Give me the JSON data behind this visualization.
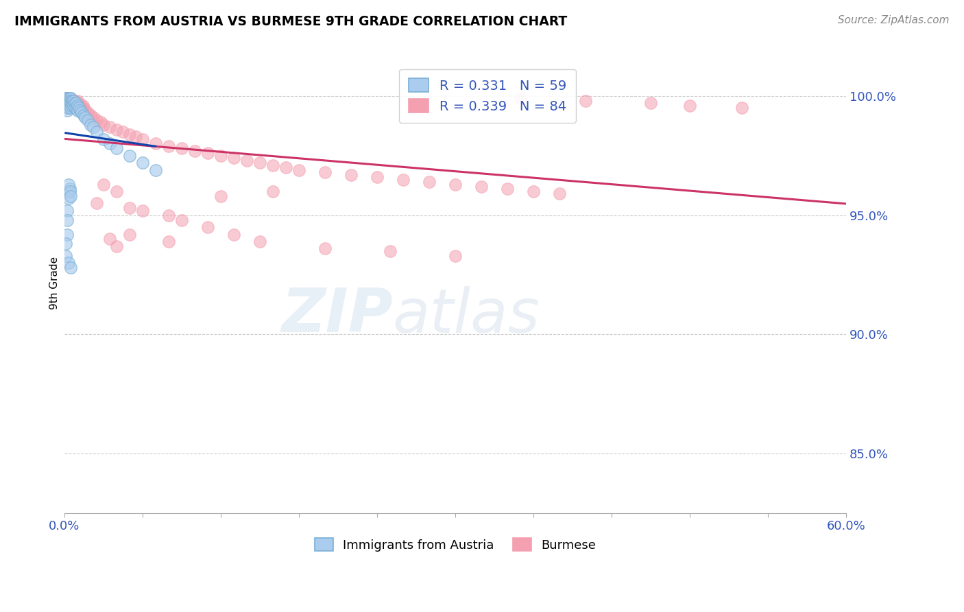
{
  "title": "IMMIGRANTS FROM AUSTRIA VS BURMESE 9TH GRADE CORRELATION CHART",
  "source": "Source: ZipAtlas.com",
  "ylabel": "9th Grade",
  "legend_r1": "R = 0.331",
  "legend_n1": "N = 59",
  "legend_r2": "R = 0.339",
  "legend_n2": "N = 84",
  "blue_color": "#7BAFD4",
  "blue_fill": "#AACCEE",
  "pink_color": "#F4A0B0",
  "pink_fill": "#F4A0B0",
  "blue_line_color": "#1144AA",
  "pink_line_color": "#CC3366",
  "xlim": [
    0.0,
    0.6
  ],
  "ylim": [
    0.825,
    1.018
  ],
  "ytick_values": [
    1.0,
    0.95,
    0.9,
    0.85
  ],
  "ytick_labels": [
    "100.0%",
    "95.0%",
    "90.0%",
    "85.0%"
  ],
  "xtick_left_label": "0.0%",
  "xtick_right_label": "60.0%",
  "bottom_legend_labels": [
    "Immigrants from Austria",
    "Burmese"
  ],
  "blue_x": [
    0.001,
    0.001,
    0.001,
    0.002,
    0.002,
    0.002,
    0.002,
    0.002,
    0.002,
    0.003,
    0.003,
    0.003,
    0.003,
    0.004,
    0.004,
    0.004,
    0.004,
    0.005,
    0.005,
    0.005,
    0.005,
    0.006,
    0.006,
    0.006,
    0.007,
    0.007,
    0.008,
    0.008,
    0.009,
    0.009,
    0.01,
    0.01,
    0.011,
    0.012,
    0.013,
    0.015,
    0.016,
    0.018,
    0.02,
    0.022,
    0.025,
    0.03,
    0.035,
    0.04,
    0.05,
    0.06,
    0.07,
    0.004,
    0.003,
    0.002,
    0.002,
    0.003,
    0.004,
    0.005,
    0.002,
    0.001,
    0.001,
    0.003,
    0.005
  ],
  "blue_y": [
    0.999,
    0.998,
    0.997,
    0.999,
    0.998,
    0.997,
    0.996,
    0.995,
    0.994,
    0.999,
    0.998,
    0.997,
    0.995,
    0.999,
    0.998,
    0.997,
    0.996,
    0.999,
    0.998,
    0.997,
    0.995,
    0.998,
    0.997,
    0.996,
    0.998,
    0.996,
    0.997,
    0.995,
    0.997,
    0.995,
    0.996,
    0.994,
    0.995,
    0.994,
    0.993,
    0.992,
    0.991,
    0.99,
    0.988,
    0.987,
    0.985,
    0.982,
    0.98,
    0.978,
    0.975,
    0.972,
    0.969,
    0.961,
    0.957,
    0.952,
    0.948,
    0.963,
    0.96,
    0.958,
    0.942,
    0.938,
    0.933,
    0.93,
    0.928
  ],
  "pink_x": [
    0.001,
    0.001,
    0.002,
    0.002,
    0.002,
    0.003,
    0.003,
    0.003,
    0.004,
    0.004,
    0.005,
    0.005,
    0.006,
    0.006,
    0.007,
    0.008,
    0.008,
    0.009,
    0.01,
    0.01,
    0.011,
    0.012,
    0.013,
    0.014,
    0.015,
    0.016,
    0.018,
    0.02,
    0.022,
    0.025,
    0.028,
    0.03,
    0.035,
    0.04,
    0.045,
    0.05,
    0.055,
    0.06,
    0.07,
    0.08,
    0.09,
    0.1,
    0.11,
    0.12,
    0.13,
    0.14,
    0.15,
    0.16,
    0.17,
    0.18,
    0.2,
    0.22,
    0.24,
    0.26,
    0.28,
    0.3,
    0.32,
    0.34,
    0.36,
    0.38,
    0.05,
    0.08,
    0.16,
    0.12,
    0.03,
    0.04,
    0.025,
    0.06,
    0.09,
    0.11,
    0.13,
    0.15,
    0.2,
    0.25,
    0.3,
    0.35,
    0.4,
    0.45,
    0.48,
    0.52,
    0.05,
    0.08,
    0.035,
    0.04
  ],
  "pink_y": [
    0.999,
    0.997,
    0.999,
    0.998,
    0.996,
    0.999,
    0.998,
    0.996,
    0.999,
    0.997,
    0.999,
    0.997,
    0.998,
    0.996,
    0.997,
    0.998,
    0.996,
    0.997,
    0.998,
    0.996,
    0.997,
    0.996,
    0.995,
    0.996,
    0.995,
    0.994,
    0.993,
    0.992,
    0.991,
    0.99,
    0.989,
    0.988,
    0.987,
    0.986,
    0.985,
    0.984,
    0.983,
    0.982,
    0.98,
    0.979,
    0.978,
    0.977,
    0.976,
    0.975,
    0.974,
    0.973,
    0.972,
    0.971,
    0.97,
    0.969,
    0.968,
    0.967,
    0.966,
    0.965,
    0.964,
    0.963,
    0.962,
    0.961,
    0.96,
    0.959,
    0.953,
    0.95,
    0.96,
    0.958,
    0.963,
    0.96,
    0.955,
    0.952,
    0.948,
    0.945,
    0.942,
    0.939,
    0.936,
    0.935,
    0.933,
    0.999,
    0.998,
    0.997,
    0.996,
    0.995,
    0.942,
    0.939,
    0.94,
    0.937
  ]
}
